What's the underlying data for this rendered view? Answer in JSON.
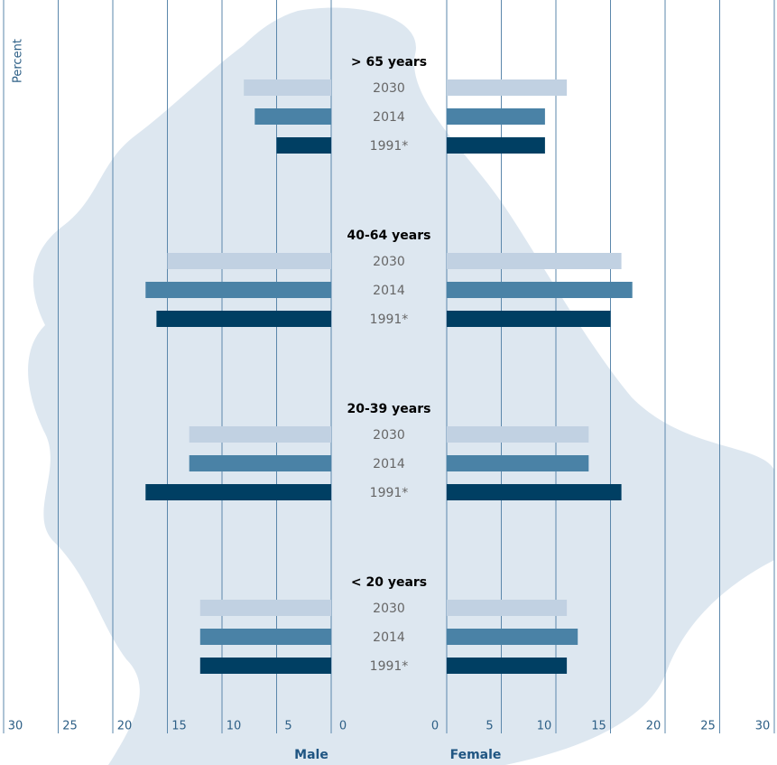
{
  "chart_data": {
    "type": "butterfly-bar",
    "y_label": "Percent",
    "left_label": "Male",
    "right_label": "Female",
    "categories": [
      "> 65 years",
      "40-64 years",
      "20-39 years",
      "< 20 years"
    ],
    "series": [
      {
        "name": "2030",
        "color": "#c1d1e2",
        "male": [
          8,
          15,
          13,
          12
        ],
        "female": [
          11,
          16,
          13,
          11
        ]
      },
      {
        "name": "2014",
        "color": "#4a82a6",
        "male": [
          7,
          17,
          13,
          12
        ],
        "female": [
          9,
          17,
          13,
          12
        ]
      },
      {
        "name": "1991*",
        "color": "#003f63",
        "male": [
          5,
          16,
          17,
          12
        ],
        "female": [
          9,
          15,
          16,
          11
        ]
      }
    ],
    "xlim": [
      0,
      30
    ],
    "xticks": [
      0,
      5,
      10,
      15,
      20,
      25,
      30
    ],
    "grid": true
  }
}
